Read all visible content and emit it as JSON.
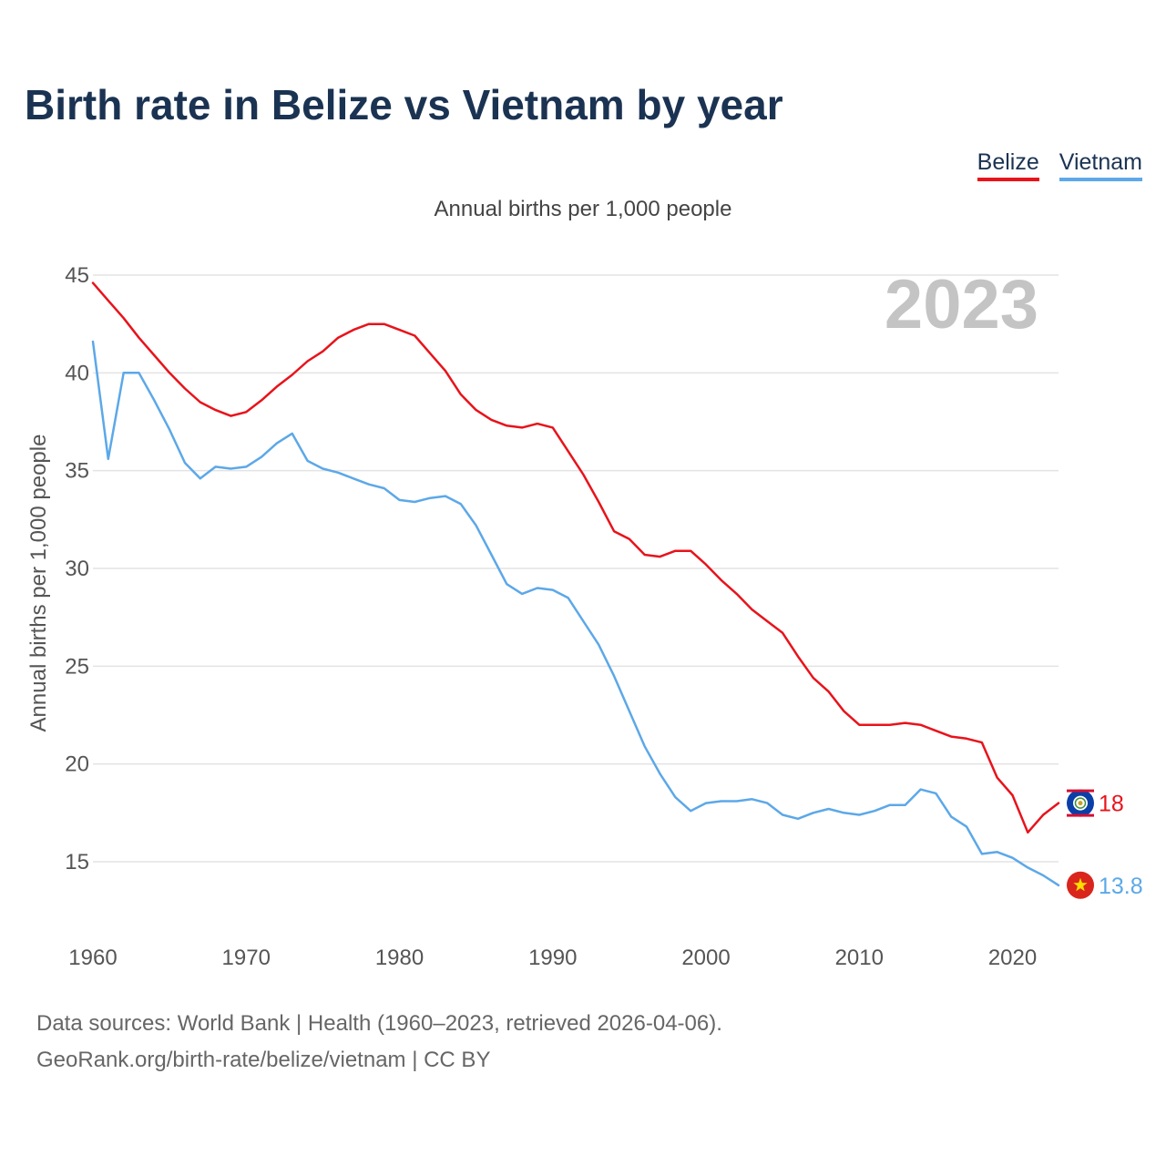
{
  "header": {
    "title": "Birth rate in Belize vs Vietnam by year"
  },
  "legend": {
    "items": [
      {
        "label": "Belize",
        "color": "#e8131b"
      },
      {
        "label": "Vietnam",
        "color": "#5ca8e8"
      }
    ]
  },
  "footer": {
    "line1": "Data sources: World Bank | Health (1960–2023, retrieved 2026-04-06).",
    "line2": "GeoRank.org/birth-rate/belize/vietnam | CC BY"
  },
  "chart_data": {
    "type": "line",
    "title": "Birth rate in Belize vs Vietnam by year",
    "subtitle": "Annual births per 1,000 people",
    "ylabel": "Annual births per 1,000 people",
    "xlabel": "",
    "year_watermark": "2023",
    "xlim": [
      1960,
      2023
    ],
    "ylim": [
      12,
      45
    ],
    "yticks": [
      15,
      20,
      25,
      30,
      35,
      40,
      45
    ],
    "xticks": [
      1960,
      1970,
      1980,
      1990,
      2000,
      2010,
      2020
    ],
    "grid": true,
    "x": [
      1960,
      1961,
      1962,
      1963,
      1964,
      1965,
      1966,
      1967,
      1968,
      1969,
      1970,
      1971,
      1972,
      1973,
      1974,
      1975,
      1976,
      1977,
      1978,
      1979,
      1980,
      1981,
      1982,
      1983,
      1984,
      1985,
      1986,
      1987,
      1988,
      1989,
      1990,
      1991,
      1992,
      1993,
      1994,
      1995,
      1996,
      1997,
      1998,
      1999,
      2000,
      2001,
      2002,
      2003,
      2004,
      2005,
      2006,
      2007,
      2008,
      2009,
      2010,
      2011,
      2012,
      2013,
      2014,
      2015,
      2016,
      2017,
      2018,
      2019,
      2020,
      2021,
      2022,
      2023
    ],
    "series": [
      {
        "name": "Belize",
        "color": "#e8131b",
        "end_label": "18",
        "flag": "belize-flag-icon",
        "values": [
          44.6,
          43.7,
          42.8,
          41.8,
          40.9,
          40.0,
          39.2,
          38.5,
          38.1,
          37.8,
          38.0,
          38.6,
          39.3,
          39.9,
          40.6,
          41.1,
          41.8,
          42.2,
          42.5,
          42.5,
          42.2,
          41.9,
          41.0,
          40.1,
          38.9,
          38.1,
          37.6,
          37.3,
          37.2,
          37.4,
          37.2,
          36.0,
          34.8,
          33.4,
          31.9,
          31.5,
          30.7,
          30.6,
          30.9,
          30.9,
          30.2,
          29.4,
          28.7,
          27.9,
          27.3,
          26.7,
          25.5,
          24.4,
          23.7,
          22.7,
          22.0,
          22.0,
          22.0,
          22.1,
          22.0,
          21.7,
          21.4,
          21.3,
          21.1,
          19.3,
          18.4,
          16.5,
          17.4,
          18.0
        ]
      },
      {
        "name": "Vietnam",
        "color": "#5ca8e8",
        "end_label": "13.8",
        "flag": "vietnam-flag-icon",
        "values": [
          41.6,
          35.6,
          40.0,
          40.0,
          38.6,
          37.1,
          35.4,
          34.6,
          35.2,
          35.1,
          35.2,
          35.7,
          36.4,
          36.9,
          35.5,
          35.1,
          34.9,
          34.6,
          34.3,
          34.1,
          33.5,
          33.4,
          33.6,
          33.7,
          33.3,
          32.2,
          30.7,
          29.2,
          28.7,
          29.0,
          28.9,
          28.5,
          27.3,
          26.1,
          24.5,
          22.7,
          20.9,
          19.5,
          18.3,
          17.6,
          18.0,
          18.1,
          18.1,
          18.2,
          18.0,
          17.4,
          17.2,
          17.5,
          17.7,
          17.5,
          17.4,
          17.6,
          17.9,
          17.9,
          18.7,
          18.5,
          17.3,
          16.8,
          15.4,
          15.5,
          15.2,
          14.7,
          14.3,
          13.8
        ]
      }
    ]
  }
}
